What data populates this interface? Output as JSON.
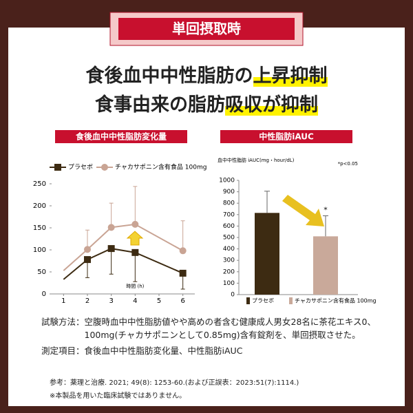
{
  "header": "単回摂取時",
  "headline": [
    {
      "plain": "食後血中中性脂肪の",
      "highlight": "上昇抑制"
    },
    {
      "plain": "食事由来の脂肪",
      "highlight": "吸収が抑制"
    }
  ],
  "chart_data": [
    {
      "type": "line",
      "title": "食後血中中性脂肪変化量",
      "xlabel": "時間 (h)",
      "x": [
        1,
        2,
        3,
        4,
        6
      ],
      "xlim": [
        0.5,
        6.5
      ],
      "xticks": [
        1,
        2,
        3,
        4,
        5,
        6
      ],
      "ylim": [
        0,
        250
      ],
      "yticks": [
        0,
        50,
        100,
        150,
        200,
        250
      ],
      "series": [
        {
          "name": "プラセボ",
          "color": "#3d2b12",
          "marker": "square",
          "values": [
            33,
            78,
            103,
            94,
            47
          ],
          "errors": [
            null,
            41,
            58,
            66,
            36
          ],
          "error_direction": "down"
        },
        {
          "name": "チャカサポニン含有食品 100mg",
          "color": "#c9a494",
          "marker": "circle",
          "values": [
            53,
            101,
            151,
            158,
            98
          ],
          "errors": [
            null,
            44,
            55,
            86,
            68
          ],
          "error_direction": "up"
        }
      ]
    },
    {
      "type": "bar",
      "title": "中性脂肪iAUC",
      "ylabel": "血中中性脂肪 iAUC(mg・hour/dL)",
      "annotation": "*p<0.05",
      "ylim": [
        0,
        1000
      ],
      "yticks": [
        0,
        100,
        200,
        300,
        400,
        500,
        600,
        700,
        800,
        900,
        1000
      ],
      "series": [
        {
          "name": "プラセボ",
          "color": "#3d2b12",
          "values": [
            715
          ],
          "errors": [
            190
          ]
        },
        {
          "name": "チャカサポニン含有食品 100mg",
          "color": "#c9a99a",
          "values": [
            510
          ],
          "errors": [
            180
          ],
          "significance": "*"
        }
      ]
    }
  ],
  "notes": {
    "method_label": "試験方法：",
    "method": "空腹時血中中性脂肪値やや高めの者含む健康成人男女28名に茶花エキス0、100mg(チャカサポニンとして0.85mg)含有錠剤を、単回摂取させた。",
    "items_label": "測定項目：",
    "items": "食後血中中性脂肪変化量、中性脂肪iAUC",
    "reference": "参考：薬理と治療. 2021; 49(8): 1253-60.(および正誤表：2023:51(7):1114.)",
    "disclaimer": "※本製品を用いた臨床試験ではありません。"
  }
}
